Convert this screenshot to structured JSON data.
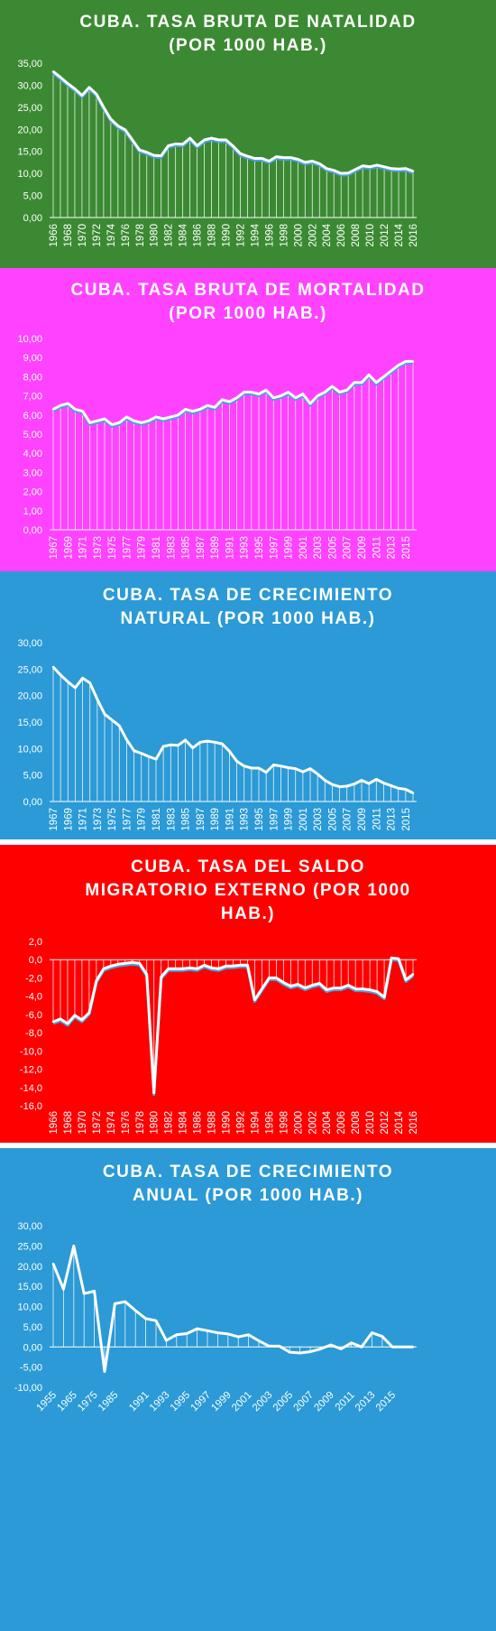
{
  "chart_data": [
    {
      "type": "area",
      "title_lines": [
        "CUBA. TASA BRUTA DE NATALIDAD",
        "(POR 1000 HAB.)"
      ],
      "background": "#3b8a33",
      "series_color": "#ffffff",
      "shadow_color": "#4aa0dd",
      "ylim": [
        0,
        35
      ],
      "yticks": [
        "0,00",
        "5,00",
        "10,00",
        "15,00",
        "20,00",
        "25,00",
        "30,00",
        "35,00"
      ],
      "x": [
        1966,
        1967,
        1968,
        1969,
        1970,
        1971,
        1972,
        1973,
        1974,
        1975,
        1976,
        1977,
        1978,
        1979,
        1980,
        1981,
        1982,
        1983,
        1984,
        1985,
        1986,
        1987,
        1988,
        1989,
        1990,
        1991,
        1992,
        1993,
        1994,
        1995,
        1996,
        1997,
        1998,
        1999,
        2000,
        2001,
        2002,
        2003,
        2004,
        2005,
        2006,
        2007,
        2008,
        2009,
        2010,
        2011,
        2012,
        2013,
        2014,
        2015,
        2016
      ],
      "xtick_labels": [
        "1966",
        "1968",
        "1970",
        "1972",
        "1974",
        "1976",
        "1978",
        "1980",
        "1982",
        "1984",
        "1986",
        "1988",
        "1990",
        "1992",
        "1994",
        "1996",
        "1998",
        "2000",
        "2002",
        "2004",
        "2006",
        "2008",
        "2010",
        "2012",
        "2014",
        "2016"
      ],
      "values": [
        33.1,
        31.8,
        30.4,
        29.2,
        27.7,
        29.5,
        28.0,
        25.0,
        22.3,
        20.8,
        19.9,
        17.6,
        15.3,
        14.8,
        14.1,
        14.0,
        16.3,
        16.7,
        16.6,
        18.0,
        16.3,
        17.6,
        18.0,
        17.6,
        17.6,
        16.2,
        14.5,
        13.9,
        13.4,
        13.4,
        12.8,
        13.8,
        13.6,
        13.6,
        13.2,
        12.5,
        12.8,
        12.2,
        11.1,
        10.7,
        10.0,
        10.1,
        10.9,
        11.7,
        11.5,
        11.9,
        11.5,
        11.1,
        11.0,
        11.1,
        10.5
      ]
    },
    {
      "type": "area",
      "title_lines": [
        "CUBA. TASA BRUTA DE MORTALIDAD",
        "(POR 1000 HAB.)"
      ],
      "background": "#ff42ff",
      "series_color": "#ffffff",
      "shadow_color": "#4aa0dd",
      "ylim": [
        0,
        10
      ],
      "yticks": [
        "0,00",
        "1,00",
        "2,00",
        "3,00",
        "4,00",
        "5,00",
        "6,00",
        "7,00",
        "8,00",
        "9,00",
        "10,00"
      ],
      "x": [
        1967,
        1968,
        1969,
        1970,
        1971,
        1972,
        1973,
        1974,
        1975,
        1976,
        1977,
        1978,
        1979,
        1980,
        1981,
        1982,
        1983,
        1984,
        1985,
        1986,
        1987,
        1988,
        1989,
        1990,
        1991,
        1992,
        1993,
        1994,
        1995,
        1996,
        1997,
        1998,
        1999,
        2000,
        2001,
        2002,
        2003,
        2004,
        2005,
        2006,
        2007,
        2008,
        2009,
        2010,
        2011,
        2012,
        2013,
        2014,
        2015,
        2016
      ],
      "xtick_labels": [
        "1967",
        "1969",
        "1971",
        "1973",
        "1975",
        "1977",
        "1979",
        "1981",
        "1983",
        "1985",
        "1987",
        "1989",
        "1991",
        "1993",
        "1995",
        "1997",
        "1999",
        "2001",
        "2003",
        "2005",
        "2007",
        "2009",
        "2011",
        "2013",
        "2015"
      ],
      "values": [
        6.3,
        6.5,
        6.6,
        6.3,
        6.2,
        5.6,
        5.7,
        5.8,
        5.5,
        5.6,
        5.9,
        5.7,
        5.6,
        5.7,
        5.9,
        5.8,
        5.9,
        6.0,
        6.3,
        6.2,
        6.3,
        6.5,
        6.4,
        6.8,
        6.7,
        6.9,
        7.2,
        7.2,
        7.1,
        7.3,
        6.9,
        7.0,
        7.2,
        6.9,
        7.1,
        6.6,
        7.0,
        7.2,
        7.5,
        7.2,
        7.3,
        7.7,
        7.7,
        8.1,
        7.7,
        8.0,
        8.3,
        8.6,
        8.8,
        8.8
      ]
    },
    {
      "type": "area",
      "title_lines": [
        "CUBA. TASA DE CRECIMIENTO",
        "NATURAL (POR 1000 HAB.)"
      ],
      "background": "#2b9ad6",
      "series_color": "#ffffff",
      "ylim": [
        0,
        30
      ],
      "yticks": [
        "0,00",
        "5,00",
        "10,00",
        "15,00",
        "20,00",
        "25,00",
        "30,00"
      ],
      "x": [
        1967,
        1968,
        1969,
        1970,
        1971,
        1972,
        1973,
        1974,
        1975,
        1976,
        1977,
        1978,
        1979,
        1980,
        1981,
        1982,
        1983,
        1984,
        1985,
        1986,
        1987,
        1988,
        1989,
        1990,
        1991,
        1992,
        1993,
        1994,
        1995,
        1996,
        1997,
        1998,
        1999,
        2000,
        2001,
        2002,
        2003,
        2004,
        2005,
        2006,
        2007,
        2008,
        2009,
        2010,
        2011,
        2012,
        2013,
        2014,
        2015,
        2016
      ],
      "xtick_labels": [
        "1967",
        "1969",
        "1971",
        "1973",
        "1975",
        "1977",
        "1979",
        "1981",
        "1983",
        "1985",
        "1987",
        "1989",
        "1991",
        "1993",
        "1995",
        "1997",
        "1999",
        "2001",
        "2003",
        "2005",
        "2007",
        "2009",
        "2011",
        "2013",
        "2015"
      ],
      "values": [
        25.4,
        23.9,
        22.6,
        21.5,
        23.3,
        22.4,
        19.3,
        16.5,
        15.4,
        14.3,
        11.7,
        9.6,
        9.1,
        8.5,
        8.0,
        10.4,
        10.7,
        10.6,
        11.6,
        10.1,
        11.2,
        11.4,
        11.2,
        10.9,
        9.5,
        7.6,
        6.7,
        6.3,
        6.3,
        5.5,
        6.9,
        6.7,
        6.4,
        6.2,
        5.6,
        6.2,
        5.2,
        4.0,
        3.2,
        2.8,
        2.9,
        3.3,
        4.0,
        3.4,
        4.2,
        3.5,
        3.0,
        2.5,
        2.3,
        1.6
      ]
    },
    {
      "type": "area",
      "title_lines": [
        "CUBA.  TASA DEL SALDO",
        "MIGRATORIO EXTERNO (POR 1000",
        "HAB.)"
      ],
      "background": "#ff0000",
      "series_color": "#ffffff",
      "shadow_color": "#4aa0dd",
      "ylim": [
        -16,
        2
      ],
      "yticks": [
        "-16,0",
        "-14,0",
        "-12,0",
        "-10,0",
        "-8,0",
        "-6,0",
        "-4,0",
        "-2,0",
        "0,0",
        "2,0"
      ],
      "x": [
        1966,
        1967,
        1968,
        1969,
        1970,
        1971,
        1972,
        1973,
        1974,
        1975,
        1976,
        1977,
        1978,
        1979,
        1980,
        1981,
        1982,
        1983,
        1984,
        1985,
        1986,
        1987,
        1988,
        1989,
        1990,
        1991,
        1992,
        1993,
        1994,
        1995,
        1996,
        1997,
        1998,
        1999,
        2000,
        2001,
        2002,
        2003,
        2004,
        2005,
        2006,
        2007,
        2008,
        2009,
        2010,
        2011,
        2012,
        2013,
        2014,
        2015,
        2016
      ],
      "xtick_labels": [
        "1966",
        "1968",
        "1970",
        "1972",
        "1974",
        "1976",
        "1978",
        "1980",
        "1982",
        "1984",
        "1986",
        "1988",
        "1990",
        "1992",
        "1994",
        "1996",
        "1998",
        "2000",
        "2002",
        "2004",
        "2006",
        "2008",
        "2010",
        "2012",
        "2014",
        "2016"
      ],
      "values": [
        -6.8,
        -6.5,
        -7.0,
        -6.1,
        -6.6,
        -5.8,
        -2.3,
        -1.0,
        -0.7,
        -0.5,
        -0.4,
        -0.3,
        -0.4,
        -1.6,
        -14.6,
        -1.9,
        -1.0,
        -1.0,
        -1.0,
        -0.9,
        -1.0,
        -0.6,
        -0.9,
        -1.0,
        -0.7,
        -0.7,
        -0.6,
        -0.6,
        -4.4,
        -3.2,
        -2.0,
        -2.0,
        -2.5,
        -2.9,
        -2.7,
        -3.1,
        -2.8,
        -2.6,
        -3.3,
        -3.1,
        -3.1,
        -2.8,
        -3.2,
        -3.2,
        -3.3,
        -3.5,
        -4.1,
        0.2,
        0.1,
        -2.2,
        -1.6
      ]
    },
    {
      "type": "area",
      "title_lines": [
        "CUBA. TASA DE CRECIMIENTO",
        "ANUAL (POR 1000 HAB.)"
      ],
      "background": "#2b9ad6",
      "series_color": "#ffffff",
      "ylim": [
        -10,
        30
      ],
      "yticks": [
        "-10,00",
        "-5,00",
        "0,00",
        "5,00",
        "10,00",
        "15,00",
        "20,00",
        "25,00",
        "30,00"
      ],
      "categories": [
        "1955",
        "1960",
        "1965",
        "1970",
        "1975",
        "1980",
        "1985",
        "1987",
        "1989",
        "1991",
        "1992",
        "1993",
        "1994",
        "1995",
        "1996",
        "1997",
        "1998",
        "1999",
        "2000",
        "2001",
        "2002",
        "2003",
        "2004",
        "2005",
        "2006",
        "2007",
        "2008",
        "2009",
        "2010",
        "2011",
        "2012",
        "2013",
        "2014",
        "2015",
        "2016",
        "2017"
      ],
      "xtick_labels": [
        "1955",
        "1965",
        "1975",
        "1985",
        "1991",
        "1993",
        "1995",
        "1997",
        "1999",
        "2001",
        "2003",
        "2005",
        "2007",
        "2009",
        "2011",
        "2013",
        "2015"
      ],
      "xtick_indices": [
        0,
        2,
        4,
        6,
        9,
        11,
        13,
        15,
        17,
        19,
        21,
        23,
        25,
        27,
        29,
        31,
        33
      ],
      "values": [
        20.6,
        14.3,
        25.0,
        13.2,
        13.8,
        -6.1,
        10.7,
        11.2,
        9.0,
        7.0,
        6.5,
        1.6,
        3.0,
        3.3,
        4.5,
        4.0,
        3.5,
        3.2,
        2.5,
        3.0,
        1.5,
        0.2,
        0.2,
        -1.3,
        -1.5,
        -1.2,
        -0.5,
        0.5,
        -0.5,
        1.0,
        0.0,
        3.5,
        2.6,
        0.0,
        0.0,
        0.0
      ]
    }
  ]
}
